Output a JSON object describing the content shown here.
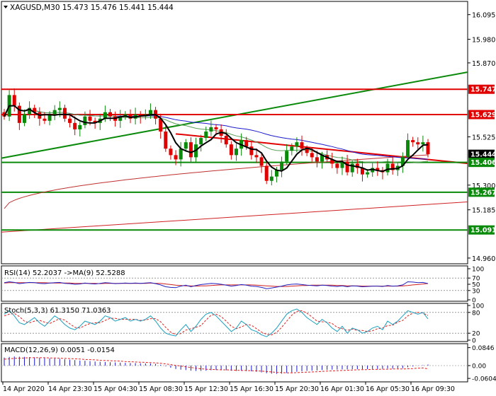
{
  "chart_data": [
    {
      "type": "candlestick",
      "header": "XAGUSD,M30  15.473 15.476 15.441 15.444",
      "symbol": "XAGUSD",
      "timeframe": "M30",
      "ohlc_readout": [
        15.473,
        15.476,
        15.441,
        15.444
      ],
      "y_ticks": [
        "16.095",
        "15.980",
        "15.870",
        "15.525",
        "15.300",
        "15.185",
        "14.960"
      ],
      "x_ticks": [
        "14 Apr 2020",
        "14 Apr 23:30",
        "15 Apr 04:30",
        "15 Apr 08:30",
        "15 Apr 12:30",
        "15 Apr 16:30",
        "15 Apr 20:30",
        "16 Apr 01:30",
        "16 Apr 05:30",
        "16 Apr 09:30"
      ],
      "ylim": [
        14.94,
        16.15
      ],
      "closes": [
        15.62,
        15.72,
        15.67,
        15.59,
        15.63,
        15.66,
        15.64,
        15.61,
        15.6,
        15.63,
        15.65,
        15.66,
        15.61,
        15.59,
        15.56,
        15.58,
        15.62,
        15.6,
        15.59,
        15.61,
        15.64,
        15.62,
        15.6,
        15.62,
        15.63,
        15.61,
        15.63,
        15.62,
        15.63,
        15.65,
        15.61,
        15.55,
        15.47,
        15.44,
        15.42,
        15.47,
        15.5,
        15.43,
        15.49,
        15.52,
        15.55,
        15.57,
        15.56,
        15.53,
        15.49,
        15.44,
        15.47,
        15.51,
        15.48,
        15.44,
        15.43,
        15.39,
        15.32,
        15.34,
        15.37,
        15.41,
        15.46,
        15.48,
        15.5,
        15.47,
        15.45,
        15.43,
        15.41,
        15.44,
        15.42,
        15.4,
        15.38,
        15.41,
        15.36,
        15.4,
        15.38,
        15.35,
        15.36,
        15.38,
        15.37,
        15.36,
        15.4,
        15.37,
        15.39,
        15.43,
        15.51,
        15.5,
        15.49,
        15.5,
        15.444
      ],
      "horizontal_levels": [
        {
          "label": "15.747",
          "value": 15.747,
          "color": "#e00000"
        },
        {
          "label": "15.629",
          "value": 15.629,
          "color": "#e00000"
        },
        {
          "label": "15.444",
          "value": 15.444,
          "color": "#000000"
        },
        {
          "label": "15.406",
          "value": 15.406,
          "color": "#0a8a0a"
        },
        {
          "label": "15.267",
          "value": 15.267,
          "color": "#0a8a0a"
        },
        {
          "label": "15.091",
          "value": 15.091,
          "color": "#0a8a0a"
        }
      ],
      "colors": {
        "up": "#0a8a0a",
        "down": "#e00000",
        "trend_up": "#0a8a0a",
        "trend_down": "#e00000",
        "ma_slow": "#1a1ad0",
        "ma_mid": "#5aa05a"
      }
    },
    {
      "type": "line",
      "header": "RSI(14) 52.2037  ->MA(9) 52.5288",
      "y_ticks": [
        "100",
        "70",
        "50",
        "30",
        "0"
      ],
      "ylim": [
        0,
        100
      ],
      "series": [
        {
          "name": "RSI(14)",
          "values": [
            55,
            58,
            56,
            52,
            54,
            56,
            55,
            53,
            52,
            54,
            55,
            56,
            53,
            52,
            50,
            51,
            54,
            52,
            51,
            53,
            55,
            54,
            52,
            53,
            54,
            53,
            54,
            53,
            54,
            55,
            52,
            48,
            42,
            40,
            39,
            44,
            47,
            42,
            46,
            49,
            51,
            53,
            52,
            50,
            47,
            44,
            46,
            49,
            47,
            44,
            43,
            40,
            36,
            38,
            41,
            44,
            48,
            50,
            51,
            49,
            47,
            46,
            45,
            47,
            46,
            44,
            43,
            45,
            42,
            45,
            44,
            42,
            43,
            44,
            44,
            43,
            46,
            44,
            45,
            48,
            58,
            57,
            55,
            56,
            52.2
          ]
        },
        {
          "name": "MA(9)",
          "values": [
            54,
            55,
            55,
            55,
            55,
            55,
            55,
            55,
            55,
            54,
            54,
            54,
            54,
            54,
            53,
            53,
            53,
            53,
            53,
            52,
            53,
            53,
            53,
            53,
            53,
            53,
            53,
            53,
            53,
            54,
            53,
            53,
            51,
            49,
            47,
            46,
            45,
            45,
            44,
            45,
            45,
            46,
            47,
            48,
            48,
            48,
            48,
            48,
            48,
            48,
            47,
            46,
            45,
            44,
            43,
            43,
            43,
            44,
            45,
            46,
            46,
            47,
            47,
            47,
            47,
            47,
            46,
            46,
            45,
            45,
            45,
            44,
            44,
            44,
            44,
            44,
            44,
            44,
            44,
            45,
            46,
            48,
            49,
            51,
            52.5
          ]
        }
      ]
    },
    {
      "type": "line",
      "header": "Stoch(5,3,3) 61.3150 71.0363",
      "y_ticks": [
        "100",
        "80",
        "20",
        "0"
      ],
      "ylim": [
        0,
        100
      ],
      "series": [
        {
          "name": "%K",
          "values": [
            75,
            85,
            70,
            50,
            45,
            55,
            65,
            50,
            40,
            55,
            70,
            60,
            45,
            35,
            30,
            40,
            55,
            50,
            45,
            55,
            70,
            65,
            55,
            60,
            65,
            55,
            60,
            55,
            60,
            70,
            55,
            35,
            20,
            15,
            12,
            30,
            45,
            25,
            40,
            60,
            75,
            80,
            70,
            55,
            40,
            25,
            35,
            55,
            45,
            30,
            25,
            15,
            10,
            20,
            35,
            55,
            75,
            85,
            90,
            80,
            65,
            55,
            45,
            60,
            50,
            35,
            25,
            40,
            20,
            35,
            30,
            20,
            25,
            35,
            40,
            30,
            55,
            45,
            55,
            70,
            85,
            80,
            75,
            80,
            61.3
          ]
        },
        {
          "name": "%D",
          "values": [
            70,
            75,
            77,
            68,
            55,
            50,
            55,
            57,
            52,
            48,
            55,
            62,
            58,
            47,
            37,
            35,
            42,
            48,
            50,
            50,
            57,
            63,
            63,
            60,
            60,
            60,
            60,
            57,
            58,
            62,
            62,
            53,
            37,
            23,
            16,
            19,
            29,
            33,
            37,
            42,
            58,
            72,
            75,
            68,
            55,
            40,
            33,
            38,
            45,
            43,
            33,
            23,
            17,
            15,
            22,
            37,
            55,
            72,
            83,
            85,
            78,
            67,
            55,
            53,
            52,
            48,
            37,
            33,
            28,
            32,
            28,
            28,
            25,
            27,
            33,
            35,
            42,
            43,
            52,
            57,
            70,
            78,
            80,
            78,
            71.0
          ]
        }
      ]
    },
    {
      "type": "bar",
      "header": "MACD(12,26,9) 0.0051 -0.0154",
      "y_ticks": [
        "0.0846",
        "0.00",
        "-0.0604"
      ],
      "ylim": [
        -0.07,
        0.09
      ],
      "series": [
        {
          "name": "MACD",
          "values": [
            0.038,
            0.041,
            0.043,
            0.042,
            0.041,
            0.04,
            0.039,
            0.037,
            0.035,
            0.034,
            0.033,
            0.032,
            0.03,
            0.028,
            0.026,
            0.024,
            0.023,
            0.021,
            0.019,
            0.018,
            0.017,
            0.016,
            0.015,
            0.014,
            0.013,
            0.012,
            0.012,
            0.011,
            0.01,
            0.01,
            0.008,
            0.004,
            -0.003,
            -0.01,
            -0.016,
            -0.019,
            -0.021,
            -0.024,
            -0.025,
            -0.025,
            -0.024,
            -0.022,
            -0.021,
            -0.021,
            -0.022,
            -0.024,
            -0.025,
            -0.025,
            -0.026,
            -0.027,
            -0.029,
            -0.032,
            -0.036,
            -0.038,
            -0.039,
            -0.038,
            -0.035,
            -0.032,
            -0.029,
            -0.027,
            -0.025,
            -0.024,
            -0.023,
            -0.021,
            -0.02,
            -0.019,
            -0.019,
            -0.018,
            -0.018,
            -0.017,
            -0.017,
            -0.017,
            -0.017,
            -0.016,
            -0.016,
            -0.015,
            -0.014,
            -0.014,
            -0.013,
            -0.012,
            -0.008,
            -0.004,
            -0.001,
            0.002,
            0.0051
          ]
        },
        {
          "name": "Signal",
          "values": [
            0.03,
            0.032,
            0.034,
            0.035,
            0.036,
            0.037,
            0.037,
            0.037,
            0.037,
            0.036,
            0.036,
            0.035,
            0.034,
            0.033,
            0.032,
            0.031,
            0.029,
            0.028,
            0.027,
            0.025,
            0.024,
            0.023,
            0.022,
            0.021,
            0.019,
            0.018,
            0.017,
            0.016,
            0.015,
            0.014,
            0.013,
            0.011,
            0.008,
            0.005,
            0.001,
            -0.002,
            -0.006,
            -0.009,
            -0.012,
            -0.015,
            -0.017,
            -0.018,
            -0.019,
            -0.02,
            -0.02,
            -0.021,
            -0.022,
            -0.023,
            -0.023,
            -0.024,
            -0.025,
            -0.026,
            -0.028,
            -0.03,
            -0.032,
            -0.033,
            -0.034,
            -0.034,
            -0.033,
            -0.032,
            -0.031,
            -0.03,
            -0.029,
            -0.027,
            -0.026,
            -0.025,
            -0.024,
            -0.023,
            -0.022,
            -0.021,
            -0.02,
            -0.019,
            -0.019,
            -0.018,
            -0.018,
            -0.017,
            -0.017,
            -0.016,
            -0.016,
            -0.016,
            -0.015,
            -0.014,
            -0.012,
            -0.011,
            -0.0154
          ]
        }
      ]
    }
  ]
}
